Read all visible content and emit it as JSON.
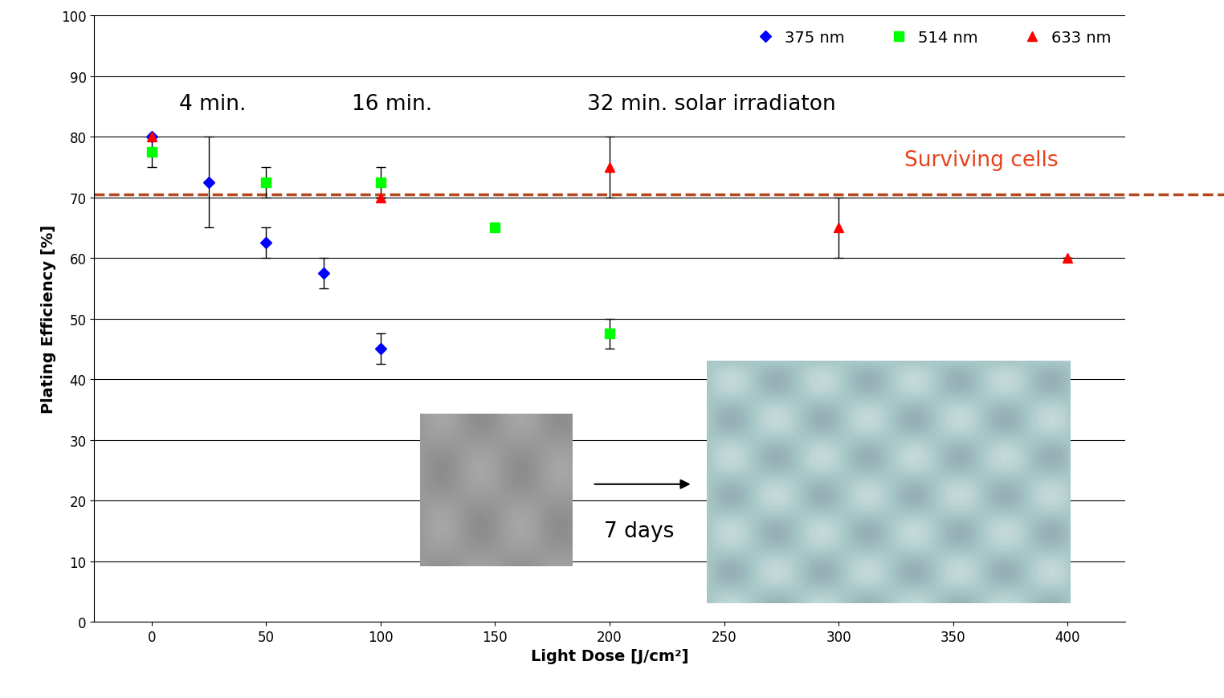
{
  "chart_data": {
    "type": "scatter",
    "x_label": "Light Dose [J/cm²]",
    "y_label": "Plating Efficiency [%]",
    "xlim": [
      -25,
      425
    ],
    "xticks": [
      0,
      50,
      100,
      150,
      200,
      250,
      300,
      350,
      400
    ],
    "ylim": [
      0,
      100
    ],
    "yticks": [
      0,
      10,
      20,
      30,
      40,
      50,
      60,
      70,
      80,
      90,
      100
    ],
    "grid": true,
    "legend": "upper right",
    "series": [
      {
        "name": "375 nm",
        "color": "#0000ff",
        "marker": "diamond",
        "x": [
          0,
          25,
          50,
          75,
          100
        ],
        "values": [
          80,
          72.5,
          62.5,
          57.5,
          45
        ],
        "errors": [
          0,
          7.5,
          2.5,
          2.5,
          2.5
        ]
      },
      {
        "name": "514 nm",
        "color": "#00ff00",
        "marker": "square",
        "x": [
          0,
          50,
          100,
          150,
          200
        ],
        "values": [
          77.5,
          72.5,
          72.5,
          65,
          47.5
        ],
        "errors": [
          2.5,
          2.5,
          2.5,
          0,
          2.5
        ]
      },
      {
        "name": "633 nm",
        "color": "#ff0000",
        "marker": "triangle",
        "x": [
          0,
          100,
          200,
          300,
          400
        ],
        "values": [
          80,
          70,
          75,
          65,
          60
        ],
        "errors": [
          0,
          0,
          5,
          5,
          0
        ]
      }
    ],
    "threshold": {
      "value": 70.5,
      "label": "Surviving cells",
      "color": "#b5471d",
      "line_style": "dashed"
    },
    "annotations": [
      "4 min.",
      "16 min.",
      "32 min. solar irradiaton",
      "7 days"
    ]
  }
}
